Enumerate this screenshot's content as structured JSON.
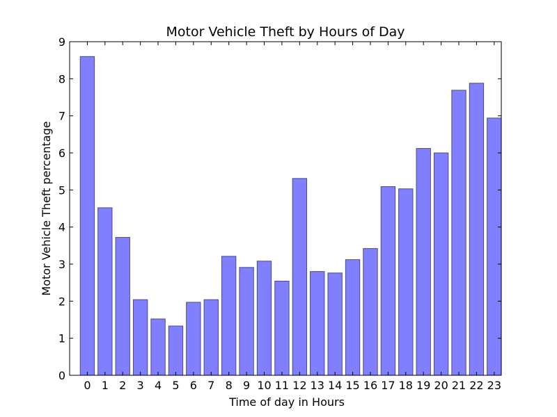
{
  "chart_data": {
    "type": "bar",
    "title": "Motor Vehicle Theft by Hours of Day",
    "xlabel": "Time of day in Hours",
    "ylabel": "Motor Vehicle Theft percentage",
    "categories": [
      "0",
      "1",
      "2",
      "3",
      "4",
      "5",
      "6",
      "7",
      "8",
      "9",
      "10",
      "11",
      "12",
      "13",
      "14",
      "15",
      "16",
      "17",
      "18",
      "19",
      "20",
      "21",
      "22",
      "23"
    ],
    "values": [
      8.6,
      4.52,
      3.72,
      2.04,
      1.52,
      1.33,
      1.97,
      2.04,
      3.21,
      2.91,
      3.08,
      2.54,
      5.31,
      2.8,
      2.76,
      3.12,
      3.42,
      5.09,
      5.03,
      6.12,
      6.0,
      7.69,
      7.88,
      6.94
    ],
    "ylim": [
      0,
      9
    ],
    "yticks": [
      "0",
      "1",
      "2",
      "3",
      "4",
      "5",
      "6",
      "7",
      "8",
      "9"
    ],
    "bar_color": "#8080ff",
    "bar_edge_color": "#4a4a8c",
    "grid": false
  }
}
